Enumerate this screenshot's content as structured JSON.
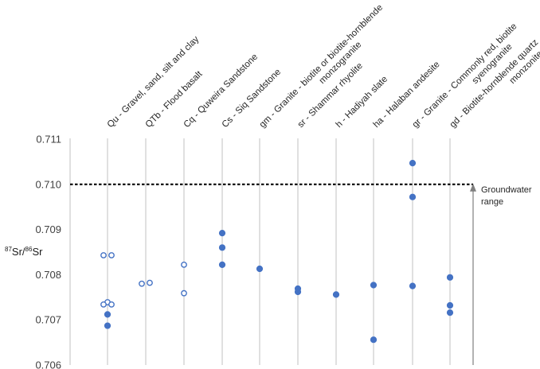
{
  "chart_data": {
    "type": "scatter",
    "title": "",
    "xlabel": "",
    "ylabel": {
      "sup1": "87",
      "base1": "Sr/",
      "sup2": "86",
      "base2": "Sr"
    },
    "ylim": [
      0.706,
      0.711
    ],
    "yticks": [
      "0.711",
      "0.710",
      "0.709",
      "0.708",
      "0.707",
      "0.706"
    ],
    "ytick_values": [
      0.711,
      0.71,
      0.709,
      0.708,
      0.707,
      0.706
    ],
    "grid": "vertical lines per category",
    "categories": [
      [
        "Qu - Gravel, sand, silt and clay"
      ],
      [
        "QTb - Flood basalt"
      ],
      [
        "Cq - Quweira Sandstone"
      ],
      [
        "Cs - Siq Sandstone"
      ],
      [
        "gm - Granite - biotite or biotite-hornblende",
        "monzogranite"
      ],
      [
        "sr - Shammar rhyolite"
      ],
      [
        "h - Hadiyah slate"
      ],
      [
        "ha - Halaban andesite"
      ],
      [
        "gr - Granite - Commonly red, biotite",
        "syenogranite"
      ],
      [
        "gd - Biotite-hornblende quartz",
        "monzonite"
      ]
    ],
    "points": [
      {
        "cat": 0,
        "y": 0.70843,
        "fill": "open",
        "offset": -1
      },
      {
        "cat": 0,
        "y": 0.70843,
        "fill": "open",
        "offset": 1
      },
      {
        "cat": 0,
        "y": 0.70739,
        "fill": "open",
        "offset": 0
      },
      {
        "cat": 0,
        "y": 0.70734,
        "fill": "open",
        "offset": -1
      },
      {
        "cat": 0,
        "y": 0.70734,
        "fill": "open",
        "offset": 1
      },
      {
        "cat": 0,
        "y": 0.70712,
        "fill": "filled",
        "offset": 0
      },
      {
        "cat": 0,
        "y": 0.70687,
        "fill": "filled",
        "offset": 0
      },
      {
        "cat": 1,
        "y": 0.70782,
        "fill": "open",
        "offset": 1
      },
      {
        "cat": 1,
        "y": 0.7078,
        "fill": "open",
        "offset": -1
      },
      {
        "cat": 2,
        "y": 0.70822,
        "fill": "open",
        "offset": 0
      },
      {
        "cat": 2,
        "y": 0.70759,
        "fill": "open",
        "offset": 0
      },
      {
        "cat": 3,
        "y": 0.70892,
        "fill": "filled",
        "offset": 0
      },
      {
        "cat": 3,
        "y": 0.7086,
        "fill": "filled",
        "offset": 0
      },
      {
        "cat": 3,
        "y": 0.70822,
        "fill": "filled",
        "offset": 0
      },
      {
        "cat": 4,
        "y": 0.70813,
        "fill": "filled",
        "offset": 0
      },
      {
        "cat": 5,
        "y": 0.70769,
        "fill": "filled",
        "offset": 0
      },
      {
        "cat": 5,
        "y": 0.70762,
        "fill": "filled",
        "offset": 0
      },
      {
        "cat": 6,
        "y": 0.70756,
        "fill": "filled",
        "offset": 0
      },
      {
        "cat": 7,
        "y": 0.70777,
        "fill": "filled",
        "offset": 0
      },
      {
        "cat": 7,
        "y": 0.70656,
        "fill": "filled",
        "offset": 0
      },
      {
        "cat": 8,
        "y": 0.71047,
        "fill": "filled",
        "offset": 0
      },
      {
        "cat": 8,
        "y": 0.70972,
        "fill": "filled",
        "offset": 0
      },
      {
        "cat": 8,
        "y": 0.70775,
        "fill": "filled",
        "offset": 0
      },
      {
        "cat": 9,
        "y": 0.70794,
        "fill": "filled",
        "offset": 0
      },
      {
        "cat": 9,
        "y": 0.70732,
        "fill": "filled",
        "offset": 0
      },
      {
        "cat": 9,
        "y": 0.70716,
        "fill": "filled",
        "offset": 0
      }
    ],
    "groundwater": {
      "threshold": 0.71,
      "label_lines": [
        "Groundwater",
        "range"
      ]
    },
    "colors": {
      "point": "#4472c4",
      "grid": "#d0d0d0",
      "threshold": "#000000",
      "arrow": "#7f7f7f"
    }
  }
}
